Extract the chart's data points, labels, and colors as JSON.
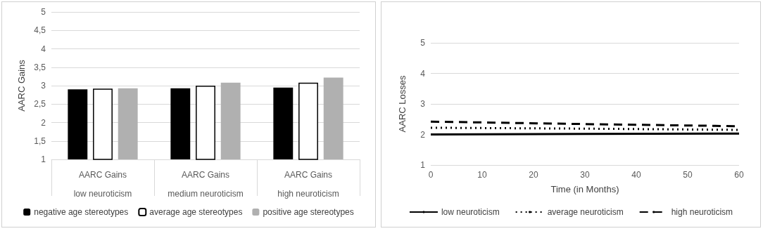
{
  "chart_data": [
    {
      "type": "bar",
      "ylabel": "AARC Gains",
      "categories": [
        "AARC Gains\nlow neuroticism",
        "AARC Gains\nmedium neuroticism",
        "AARC Gains\nhigh neuroticism"
      ],
      "series": [
        {
          "name": "negative age stereotypes",
          "color": "#000000",
          "values": [
            2.9,
            2.93,
            2.95
          ]
        },
        {
          "name": "average age stereotypes",
          "color": "#ffffff",
          "values": [
            2.92,
            3.0,
            3.08
          ]
        },
        {
          "name": "positive age stereotypes",
          "color": "#b0b0b0",
          "values": [
            2.93,
            3.08,
            3.22
          ]
        }
      ],
      "ylim": [
        1,
        5
      ],
      "yticks": [
        1,
        {
          "value": 1.5,
          "label": "1,5"
        },
        2,
        {
          "value": 2.5,
          "label": "2,5"
        },
        3,
        {
          "value": 3.5,
          "label": "3,5"
        },
        4,
        {
          "value": 4.5,
          "label": "4,5"
        },
        5
      ],
      "grid": "y",
      "legend": "bottom"
    },
    {
      "type": "line",
      "xlabel": "Time (in Months)",
      "ylabel": "AARC Losses",
      "x": [
        0,
        30,
        60
      ],
      "series": [
        {
          "name": "low neuroticism",
          "color": "#000000",
          "line_style": "solid",
          "values": [
            2.0,
            2.02,
            2.03
          ]
        },
        {
          "name": "average neuroticism",
          "color": "#000000",
          "line_style": "dotted",
          "values": [
            2.22,
            2.19,
            2.15
          ]
        },
        {
          "name": "high neuroticism",
          "color": "#000000",
          "line_style": "dashed",
          "values": [
            2.42,
            2.34,
            2.27
          ]
        }
      ],
      "xlim": [
        0,
        60
      ],
      "xticks": [
        0,
        10,
        20,
        30,
        40,
        50,
        60
      ],
      "ylim": [
        1,
        5
      ],
      "yticks": [
        1,
        2,
        3,
        4,
        5
      ],
      "grid": "y",
      "legend": "bottom",
      "marker": "none"
    }
  ]
}
